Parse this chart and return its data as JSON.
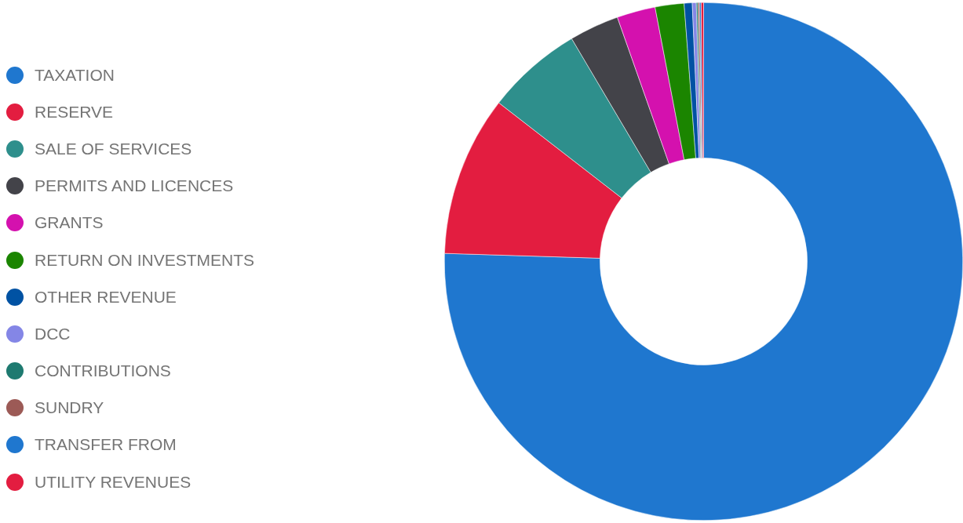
{
  "chart_data": {
    "type": "donut",
    "categories": [
      "TAXATION",
      "RESERVE",
      "SALE OF SERVICES",
      "PERMITS AND LICENCES",
      "GRANTS",
      "RETURN ON INVESTMENTS",
      "OTHER REVENUE",
      "DCC",
      "CONTRIBUTIONS",
      "SUNDRY",
      "TRANSFER FROM",
      "UTILITY REVENUES"
    ],
    "values": [
      75.5,
      10.0,
      6.0,
      3.1,
      2.4,
      1.8,
      0.5,
      0.25,
      0.1,
      0.1,
      0.1,
      0.15
    ],
    "colors": [
      "#1f77cf",
      "#e31d40",
      "#2e8f8c",
      "#434349",
      "#d411ae",
      "#1b8500",
      "#0052a3",
      "#8486e6",
      "#1e7a70",
      "#9c5a56",
      "#1f77cf",
      "#e31d40"
    ],
    "legend": "left"
  }
}
